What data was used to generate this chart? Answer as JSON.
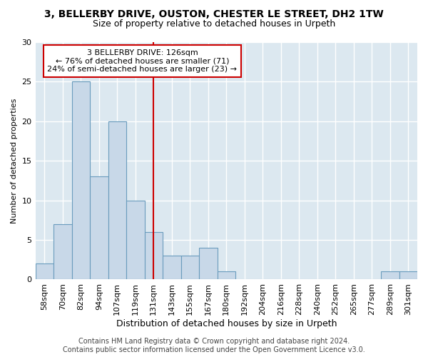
{
  "title1": "3, BELLERBY DRIVE, OUSTON, CHESTER LE STREET, DH2 1TW",
  "title2": "Size of property relative to detached houses in Urpeth",
  "xlabel": "Distribution of detached houses by size in Urpeth",
  "ylabel": "Number of detached properties",
  "categories": [
    "58sqm",
    "70sqm",
    "82sqm",
    "94sqm",
    "107sqm",
    "119sqm",
    "131sqm",
    "143sqm",
    "155sqm",
    "167sqm",
    "180sqm",
    "192sqm",
    "204sqm",
    "216sqm",
    "228sqm",
    "240sqm",
    "252sqm",
    "265sqm",
    "277sqm",
    "289sqm",
    "301sqm"
  ],
  "values": [
    2,
    7,
    25,
    13,
    20,
    10,
    6,
    3,
    3,
    4,
    1,
    0,
    0,
    0,
    0,
    0,
    0,
    0,
    0,
    1,
    1
  ],
  "bar_color": "#c8d8e8",
  "bar_edge_color": "#6a9cbd",
  "vline_x": 6,
  "vline_color": "#cc0000",
  "annotation_text": "3 BELLERBY DRIVE: 126sqm\n← 76% of detached houses are smaller (71)\n24% of semi-detached houses are larger (23) →",
  "annotation_box_color": "#ffffff",
  "annotation_edge_color": "#cc0000",
  "ylim": [
    0,
    30
  ],
  "yticks": [
    0,
    5,
    10,
    15,
    20,
    25,
    30
  ],
  "footer1": "Contains HM Land Registry data © Crown copyright and database right 2024.",
  "footer2": "Contains public sector information licensed under the Open Government Licence v3.0.",
  "fig_background_color": "#ffffff",
  "plot_background": "#dce8f0",
  "grid_color": "#ffffff",
  "title1_fontsize": 10,
  "title2_fontsize": 9,
  "xlabel_fontsize": 9,
  "ylabel_fontsize": 8,
  "tick_fontsize": 8,
  "annotation_fontsize": 8,
  "footer_fontsize": 7
}
